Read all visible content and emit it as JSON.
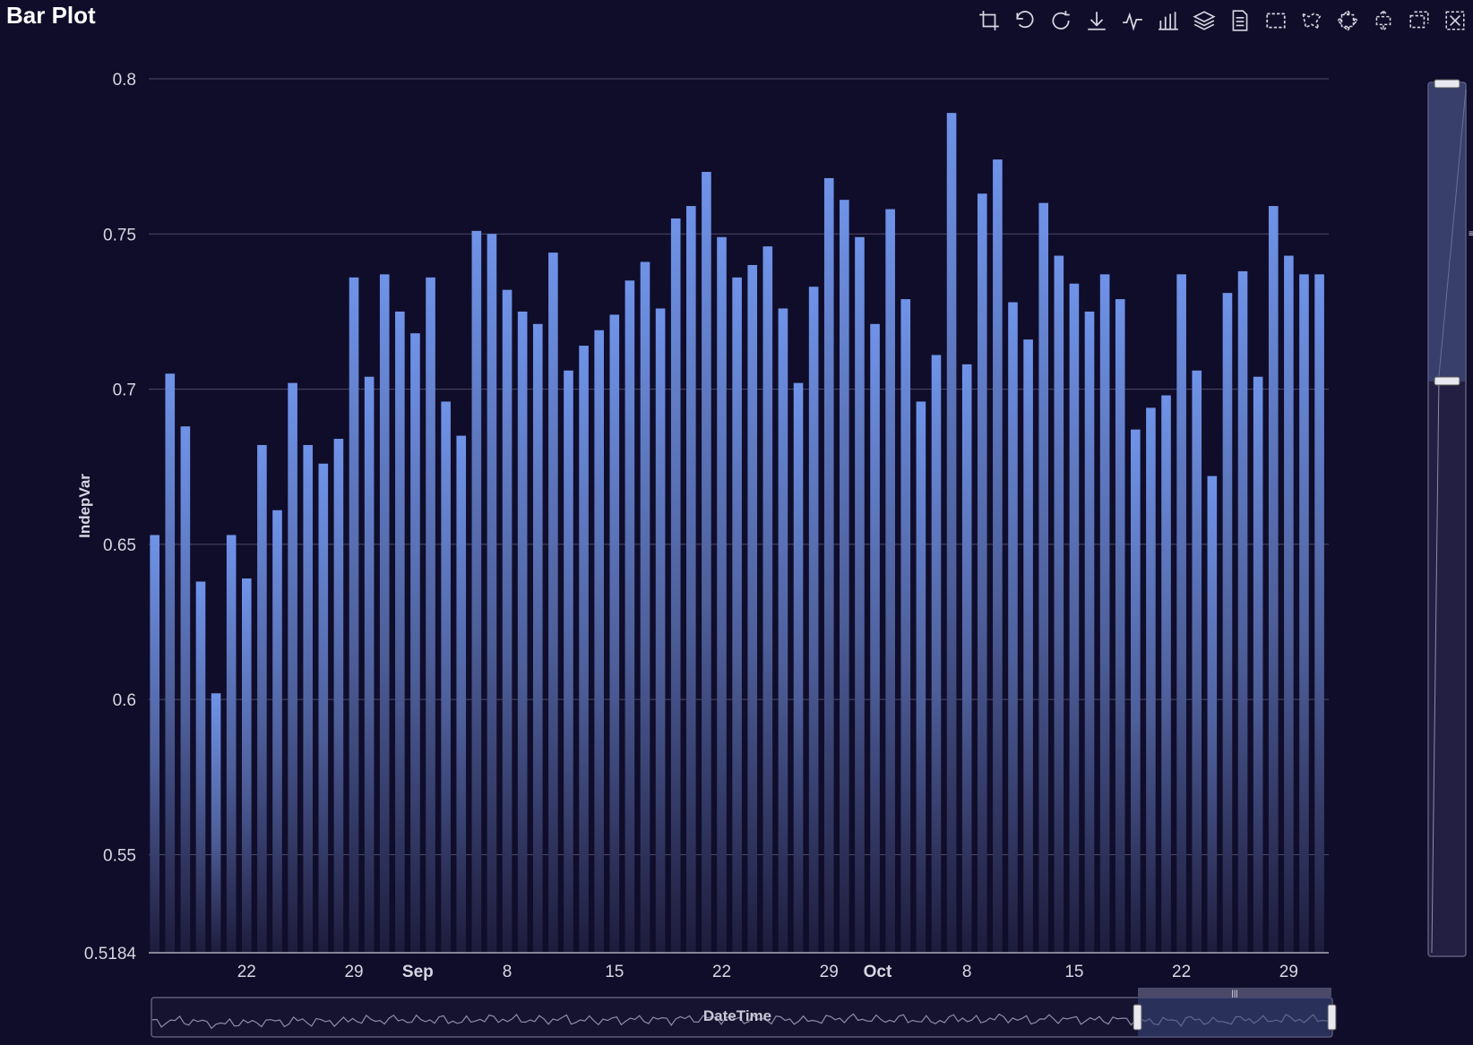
{
  "window": {
    "title": "Bar Plot"
  },
  "toolbar": {
    "icons": [
      "crop-icon",
      "undo-icon",
      "refresh-icon",
      "download-icon",
      "line-chart-icon",
      "bar-chart-icon",
      "layers-icon",
      "document-icon",
      "rect-select-icon",
      "lasso-select-icon",
      "zoom-in-icon",
      "zoom-out-icon",
      "restore-icon",
      "close-icon"
    ]
  },
  "colors": {
    "background": "#100d2a",
    "bar_top": "#6f93e8",
    "bar_bottom": "#1e1c3c",
    "grid": "#4d4a66",
    "axis_text": "#d6d6e2"
  },
  "chart_data": {
    "type": "bar",
    "xlabel": "DateTime",
    "ylabel": "IndepVar",
    "ylim": [
      0.5184,
      0.8
    ],
    "yticks": [
      "0.5184",
      "0.55",
      "0.6",
      "0.65",
      "0.7",
      "0.75",
      "0.8"
    ],
    "grid": true,
    "x_tick_labels": [
      {
        "date": "2024-08-22",
        "label": "22",
        "bold": false
      },
      {
        "date": "2024-08-29",
        "label": "29",
        "bold": false
      },
      {
        "date": "2024-09-01",
        "label": "Sep",
        "bold": true
      },
      {
        "date": "2024-09-08",
        "label": "8",
        "bold": false
      },
      {
        "date": "2024-09-15",
        "label": "15",
        "bold": false
      },
      {
        "date": "2024-09-22",
        "label": "22",
        "bold": false
      },
      {
        "date": "2024-09-29",
        "label": "29",
        "bold": false
      },
      {
        "date": "2024-10-01",
        "label": "Oct",
        "bold": true
      },
      {
        "date": "2024-10-08",
        "label": "8",
        "bold": false
      },
      {
        "date": "2024-10-15",
        "label": "15",
        "bold": false
      },
      {
        "date": "2024-10-22",
        "label": "22",
        "bold": false
      },
      {
        "date": "2024-10-29",
        "label": "29",
        "bold": false
      }
    ],
    "x": [
      "2024-08-16",
      "2024-08-17",
      "2024-08-18",
      "2024-08-19",
      "2024-08-20",
      "2024-08-21",
      "2024-08-22",
      "2024-08-23",
      "2024-08-24",
      "2024-08-25",
      "2024-08-26",
      "2024-08-27",
      "2024-08-28",
      "2024-08-29",
      "2024-08-30",
      "2024-08-31",
      "2024-09-01",
      "2024-09-02",
      "2024-09-03",
      "2024-09-04",
      "2024-09-05",
      "2024-09-06",
      "2024-09-07",
      "2024-09-08",
      "2024-09-09",
      "2024-09-10",
      "2024-09-11",
      "2024-09-12",
      "2024-09-13",
      "2024-09-14",
      "2024-09-15",
      "2024-09-16",
      "2024-09-17",
      "2024-09-18",
      "2024-09-19",
      "2024-09-20",
      "2024-09-21",
      "2024-09-22",
      "2024-09-23",
      "2024-09-24",
      "2024-09-25",
      "2024-09-26",
      "2024-09-27",
      "2024-09-28",
      "2024-09-29",
      "2024-09-30",
      "2024-10-01",
      "2024-10-02",
      "2024-10-03",
      "2024-10-04",
      "2024-10-05",
      "2024-10-06",
      "2024-10-07",
      "2024-10-08",
      "2024-10-09",
      "2024-10-10",
      "2024-10-11",
      "2024-10-12",
      "2024-10-13",
      "2024-10-14",
      "2024-10-15",
      "2024-10-16",
      "2024-10-17",
      "2024-10-18",
      "2024-10-19",
      "2024-10-20",
      "2024-10-21",
      "2024-10-22",
      "2024-10-23",
      "2024-10-24",
      "2024-10-25",
      "2024-10-26",
      "2024-10-27",
      "2024-10-28",
      "2024-10-29",
      "2024-10-30",
      "2024-10-31"
    ],
    "values": [
      0.653,
      0.705,
      0.688,
      0.638,
      0.602,
      0.653,
      0.639,
      0.682,
      0.661,
      0.702,
      0.682,
      0.676,
      0.684,
      0.736,
      0.704,
      0.737,
      0.725,
      0.718,
      0.736,
      0.696,
      0.685,
      0.751,
      0.75,
      0.732,
      0.725,
      0.721,
      0.744,
      0.706,
      0.714,
      0.719,
      0.724,
      0.735,
      0.741,
      0.726,
      0.755,
      0.759,
      0.77,
      0.749,
      0.736,
      0.74,
      0.746,
      0.726,
      0.702,
      0.733,
      0.768,
      0.761,
      0.749,
      0.721,
      0.758,
      0.729,
      0.696,
      0.711,
      0.789,
      0.708,
      0.763,
      0.774,
      0.728,
      0.716,
      0.76,
      0.743,
      0.734,
      0.725,
      0.737,
      0.729,
      0.687,
      0.694,
      0.698,
      0.737,
      0.706,
      0.672,
      0.731,
      0.738,
      0.704,
      0.759,
      0.743,
      0.737,
      0.737
    ]
  }
}
